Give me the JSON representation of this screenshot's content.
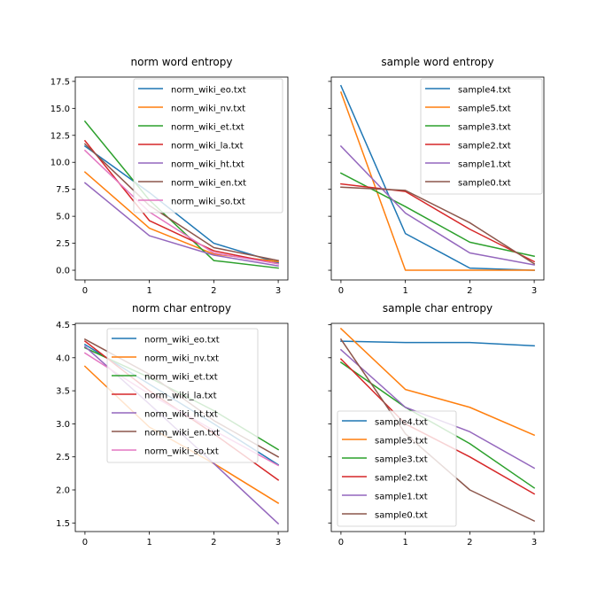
{
  "chart_data": [
    {
      "type": "line",
      "title": "norm word entropy",
      "xlabel": "",
      "ylabel": "",
      "x": [
        0,
        1,
        2,
        3
      ],
      "xlim": [
        -0.15,
        3.15
      ],
      "ylim": [
        -0.9,
        17.9
      ],
      "yticks": [
        0.0,
        2.5,
        5.0,
        7.5,
        10.0,
        12.5,
        15.0,
        17.5
      ],
      "ytick_labels": [
        "0.0",
        "2.5",
        "5.0",
        "7.5",
        "10.0",
        "12.5",
        "15.0",
        "17.5"
      ],
      "xticks": [
        0,
        1,
        2,
        3
      ],
      "xtick_labels": [
        "0",
        "1",
        "2",
        "3"
      ],
      "legend_position": "upper-right",
      "series": [
        {
          "name": "norm_wiki_eo.txt",
          "color": "#1f77b4",
          "values": [
            11.5,
            7.2,
            2.5,
            0.7
          ]
        },
        {
          "name": "norm_wiki_nv.txt",
          "color": "#ff7f0e",
          "values": [
            9.1,
            3.9,
            1.5,
            0.8
          ]
        },
        {
          "name": "norm_wiki_et.txt",
          "color": "#2ca02c",
          "values": [
            13.8,
            6.5,
            0.9,
            0.2
          ]
        },
        {
          "name": "norm_wiki_la.txt",
          "color": "#d62728",
          "values": [
            12.0,
            4.6,
            1.8,
            0.6
          ]
        },
        {
          "name": "norm_wiki_ht.txt",
          "color": "#9467bd",
          "values": [
            8.1,
            3.2,
            1.4,
            0.4
          ]
        },
        {
          "name": "norm_wiki_en.txt",
          "color": "#8c564b",
          "values": [
            11.7,
            6.0,
            2.1,
            0.9
          ]
        },
        {
          "name": "norm_wiki_so.txt",
          "color": "#e377c2",
          "values": [
            11.1,
            5.4,
            1.6,
            0.6
          ]
        }
      ]
    },
    {
      "type": "line",
      "title": "sample word entropy",
      "xlabel": "",
      "ylabel": "",
      "x": [
        0,
        1,
        2,
        3
      ],
      "xlim": [
        -0.15,
        3.15
      ],
      "ylim": [
        -0.9,
        17.9
      ],
      "yticks": [
        0.0,
        2.5,
        5.0,
        7.5,
        10.0,
        12.5,
        15.0,
        17.5
      ],
      "ytick_labels": [],
      "xticks": [
        0,
        1,
        2,
        3
      ],
      "xtick_labels": [
        "0",
        "1",
        "2",
        "3"
      ],
      "legend_position": "upper-right",
      "series": [
        {
          "name": "sample4.txt",
          "color": "#1f77b4",
          "values": [
            17.1,
            3.4,
            0.2,
            0.0
          ]
        },
        {
          "name": "sample5.txt",
          "color": "#ff7f0e",
          "values": [
            16.5,
            0.0,
            0.0,
            0.0
          ]
        },
        {
          "name": "sample3.txt",
          "color": "#2ca02c",
          "values": [
            9.0,
            5.9,
            2.6,
            1.3
          ]
        },
        {
          "name": "sample2.txt",
          "color": "#d62728",
          "values": [
            8.0,
            7.3,
            3.8,
            0.8
          ]
        },
        {
          "name": "sample1.txt",
          "color": "#9467bd",
          "values": [
            11.5,
            5.3,
            1.6,
            0.5
          ]
        },
        {
          "name": "sample0.txt",
          "color": "#8c564b",
          "values": [
            7.7,
            7.4,
            4.4,
            0.6
          ]
        }
      ]
    },
    {
      "type": "line",
      "title": "norm char entropy",
      "xlabel": "",
      "ylabel": "",
      "x": [
        0,
        1,
        2,
        3
      ],
      "xlim": [
        -0.15,
        3.15
      ],
      "ylim": [
        1.37,
        4.52
      ],
      "yticks": [
        1.5,
        2.0,
        2.5,
        3.0,
        3.5,
        4.0,
        4.5
      ],
      "ytick_labels": [
        "1.5",
        "2.0",
        "2.5",
        "3.0",
        "3.5",
        "4.0",
        "4.5"
      ],
      "xticks": [
        0,
        1,
        2,
        3
      ],
      "xtick_labels": [
        "0",
        "1",
        "2",
        "3"
      ],
      "legend_position": "upper-center",
      "series": [
        {
          "name": "norm_wiki_eo.txt",
          "color": "#1f77b4",
          "values": [
            4.2,
            3.6,
            3.0,
            2.38
          ]
        },
        {
          "name": "norm_wiki_nv.txt",
          "color": "#ff7f0e",
          "values": [
            3.87,
            2.95,
            2.4,
            1.8
          ]
        },
        {
          "name": "norm_wiki_et.txt",
          "color": "#2ca02c",
          "values": [
            4.15,
            3.7,
            3.2,
            2.61
          ]
        },
        {
          "name": "norm_wiki_la.txt",
          "color": "#d62728",
          "values": [
            4.25,
            3.5,
            2.85,
            2.15
          ]
        },
        {
          "name": "norm_wiki_ht.txt",
          "color": "#9467bd",
          "values": [
            4.17,
            3.3,
            2.4,
            1.49
          ]
        },
        {
          "name": "norm_wiki_en.txt",
          "color": "#8c564b",
          "values": [
            4.28,
            3.75,
            3.05,
            2.5
          ]
        },
        {
          "name": "norm_wiki_so.txt",
          "color": "#e377c2",
          "values": [
            4.07,
            3.45,
            2.9,
            2.37
          ]
        }
      ]
    },
    {
      "type": "line",
      "title": "sample char entropy",
      "xlabel": "",
      "ylabel": "",
      "x": [
        0,
        1,
        2,
        3
      ],
      "xlim": [
        -0.15,
        3.15
      ],
      "ylim": [
        1.37,
        4.52
      ],
      "yticks": [
        1.5,
        2.0,
        2.5,
        3.0,
        3.5,
        4.0,
        4.5
      ],
      "ytick_labels": [],
      "xticks": [
        0,
        1,
        2,
        3
      ],
      "xtick_labels": [
        "0",
        "1",
        "2",
        "3"
      ],
      "legend_position": "lower-left",
      "series": [
        {
          "name": "sample4.txt",
          "color": "#1f77b4",
          "values": [
            4.25,
            4.23,
            4.23,
            4.18
          ]
        },
        {
          "name": "sample5.txt",
          "color": "#ff7f0e",
          "values": [
            4.44,
            3.52,
            3.25,
            2.83
          ]
        },
        {
          "name": "sample3.txt",
          "color": "#2ca02c",
          "values": [
            3.93,
            3.25,
            2.7,
            2.03
          ]
        },
        {
          "name": "sample2.txt",
          "color": "#d62728",
          "values": [
            3.98,
            3.0,
            2.5,
            1.94
          ]
        },
        {
          "name": "sample1.txt",
          "color": "#9467bd",
          "values": [
            4.12,
            3.25,
            2.88,
            2.33
          ]
        },
        {
          "name": "sample0.txt",
          "color": "#8c564b",
          "values": [
            4.28,
            2.85,
            2.0,
            1.53
          ]
        }
      ]
    }
  ]
}
